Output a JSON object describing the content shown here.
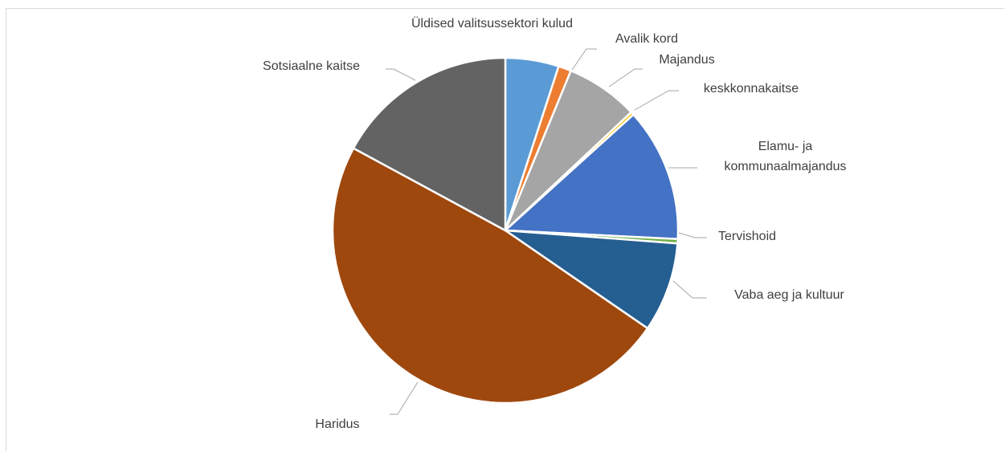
{
  "chart_data": {
    "type": "pie",
    "categories": [
      "Üldised valitsussektori kulud",
      "Avalik kord",
      "Majandus",
      "keskkonnakaitse",
      "Elamu- ja kommunaalmajandus",
      "Tervishoid",
      "Vaba aeg ja kultuur",
      "Haridus",
      "Sotsiaalne kaitse"
    ],
    "values": [
      5.0,
      1.2,
      6.8,
      0.3,
      12.5,
      0.4,
      8.4,
      48.3,
      17.1
    ],
    "colors": [
      "#5b9bd5",
      "#ed7d31",
      "#a5a5a5",
      "#ffc000",
      "#4472c4",
      "#70ad47",
      "#255e91",
      "#9e480e",
      "#636363"
    ]
  }
}
